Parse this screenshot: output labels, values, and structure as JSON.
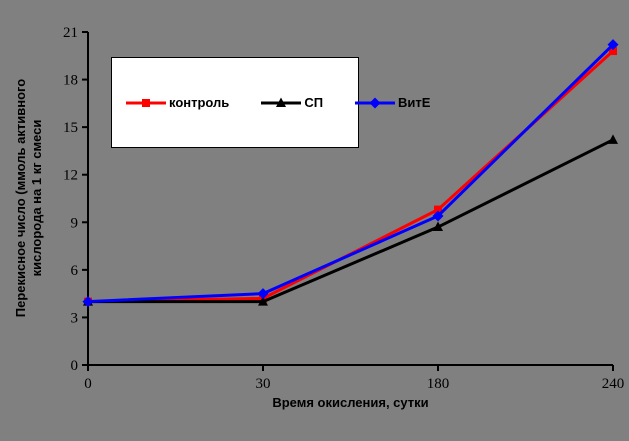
{
  "chart_data": {
    "type": "line",
    "title": "",
    "xlabel": "Время окисления, сутки",
    "ylabel": "Перекисное число (ммоль активного кислорода на 1 кг смеси",
    "ylabel_lines": [
      "Перекисное число (ммоль активного",
      "кислорода на 1 кг смеси"
    ],
    "categories": [
      "0",
      "30",
      "180",
      "240"
    ],
    "series": [
      {
        "name": "контроль",
        "color": "#FF0000",
        "marker": "square",
        "values": [
          4.0,
          4.2,
          9.8,
          19.8
        ]
      },
      {
        "name": "СП",
        "color": "#000000",
        "marker": "triangle",
        "values": [
          4.0,
          4.0,
          8.7,
          14.2
        ]
      },
      {
        "name": "ВитЕ",
        "color": "#0000FF",
        "marker": "diamond",
        "values": [
          4.0,
          4.5,
          9.4,
          20.2
        ]
      }
    ],
    "ylim": [
      0,
      21
    ],
    "yticks": [
      0,
      3,
      6,
      9,
      12,
      15,
      18,
      21
    ],
    "grid": false,
    "legend_position": "inside-upper-left",
    "colors": {
      "background": "#808080",
      "legend_background": "#FFFFFF",
      "axis": "#000000",
      "text": "#000000"
    }
  }
}
